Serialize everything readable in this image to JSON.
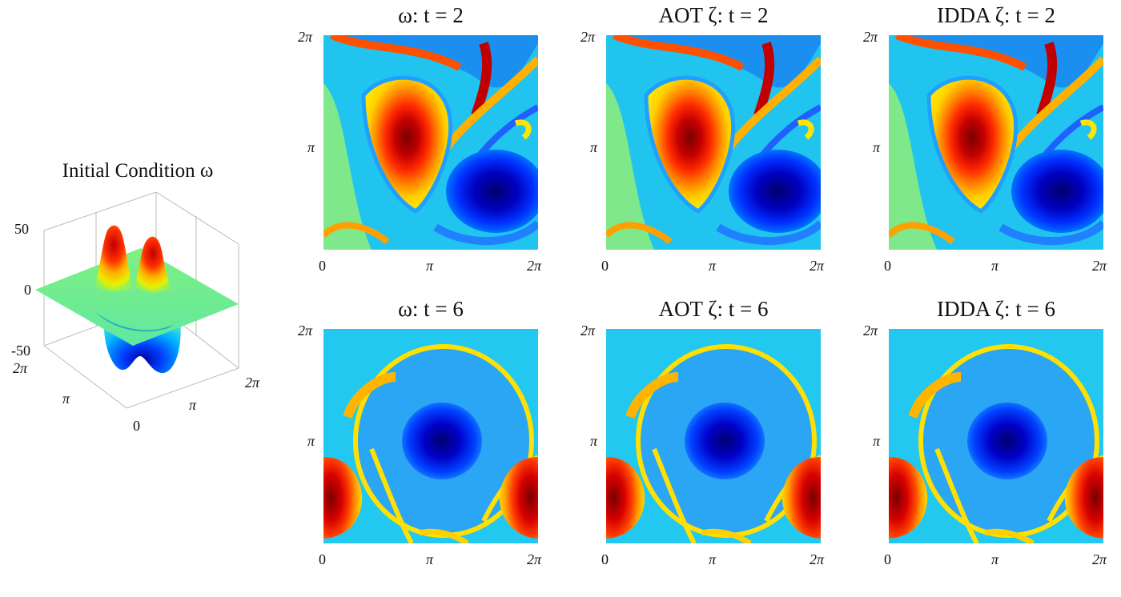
{
  "chart_data": [
    {
      "type": "surface",
      "title": "Initial Condition ω",
      "z_ticks": [
        "50",
        "0",
        "-50"
      ],
      "zlim": [
        -50,
        50
      ],
      "x_ticks": [
        "0",
        "π",
        "2π"
      ],
      "y_ticks": [
        "π",
        "2π"
      ],
      "description_values": {
        "peaks": [
          50,
          50
        ],
        "troughs": [
          -40,
          -40
        ]
      }
    },
    {
      "type": "heatmap",
      "grid": [
        {
          "title_prefix": "ω",
          "time": "t = 2",
          "row": 0,
          "col": 0
        },
        {
          "title_prefix": "AOT ζ",
          "time": "t = 2",
          "row": 0,
          "col": 1
        },
        {
          "title_prefix": "IDDA ζ",
          "time": "t = 2",
          "row": 0,
          "col": 2
        },
        {
          "title_prefix": "ω",
          "time": "t = 6",
          "row": 1,
          "col": 0
        },
        {
          "title_prefix": "AOT ζ",
          "time": "t = 6",
          "row": 1,
          "col": 1
        },
        {
          "title_prefix": "IDDA ζ",
          "time": "t = 6",
          "row": 1,
          "col": 2
        }
      ],
      "x_ticks": [
        "0",
        "π",
        "2π"
      ],
      "y_ticks": [
        "π",
        "2π"
      ],
      "colormap": "jet"
    }
  ],
  "labels": {
    "ic_title": "Initial Condition ω",
    "titles": [
      "ω: t = 2",
      "AOT ζ: t = 2",
      "IDDA ζ: t = 2",
      "ω: t = 6",
      "AOT ζ: t = 6",
      "IDDA ζ: t = 6"
    ],
    "tick_0": "0",
    "tick_pi": "π",
    "tick_2pi": "2π",
    "z_50": "50",
    "z_0": "0",
    "z_m50": "-50"
  }
}
